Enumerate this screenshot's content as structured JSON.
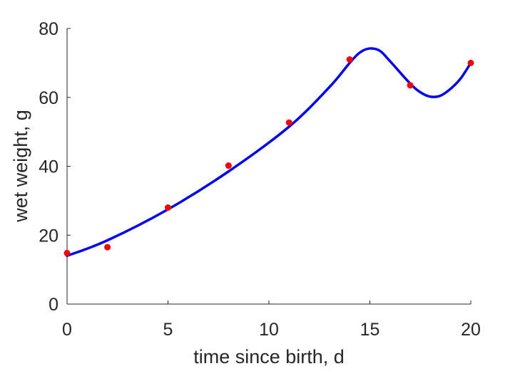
{
  "chart_data": {
    "type": "line",
    "title": "",
    "xlabel": "time since birth, d",
    "ylabel": "wet weight, g",
    "xlim": [
      0,
      20
    ],
    "ylim": [
      0,
      80
    ],
    "x_ticks": [
      "0",
      "5",
      "10",
      "15",
      "20"
    ],
    "y_ticks": [
      "0",
      "20",
      "40",
      "60",
      "80"
    ],
    "grid": false,
    "legend": "none",
    "colors": {
      "points": "#ff0000",
      "fit": "#0000ff",
      "axes": "#262626"
    },
    "series": [
      {
        "type": "scatter",
        "x": [
          0,
          2,
          5,
          8,
          11,
          14,
          17,
          20
        ],
        "y": [
          14.8,
          16.5,
          28.0,
          40.2,
          52.7,
          71.0,
          63.5,
          70.0
        ]
      },
      {
        "type": "line",
        "x": [
          0,
          2,
          5,
          8,
          11,
          13,
          14,
          14.5,
          15,
          15.5,
          16,
          17,
          17.5,
          18,
          18.5,
          19,
          19.5,
          20
        ],
        "y": [
          14.0,
          18.5,
          27.5,
          38.5,
          51.5,
          63.0,
          70.0,
          73.0,
          74.2,
          73.5,
          70.5,
          64.0,
          61.5,
          60.2,
          60.5,
          62.5,
          65.5,
          70.0
        ]
      }
    ]
  }
}
